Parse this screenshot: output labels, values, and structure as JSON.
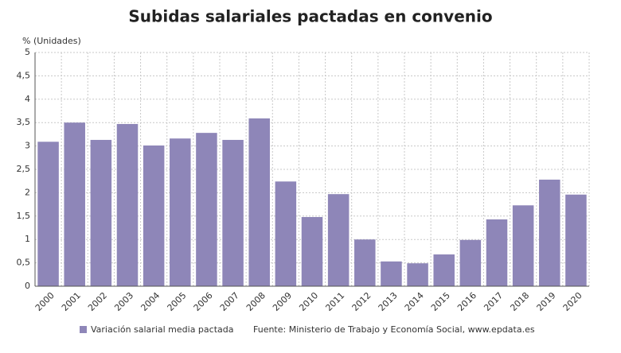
{
  "chart_data": {
    "type": "bar",
    "title": "Subidas salariales pactadas en convenio",
    "y_label": "% (Unidades)",
    "source": "Fuente: Ministerio de Trabajo y Economía Social, www.epdata.es",
    "categories": [
      "2000",
      "2001",
      "2002",
      "2003",
      "2004",
      "2005",
      "2006",
      "2007",
      "2008",
      "2009",
      "2010",
      "2011",
      "2012",
      "2013",
      "2014",
      "2015",
      "2016",
      "2017",
      "2018",
      "2019",
      "2020"
    ],
    "series": [
      {
        "name": "Variación salarial media pactada",
        "color": "#8e86b8",
        "values": [
          3.09,
          3.5,
          3.13,
          3.47,
          3.01,
          3.16,
          3.28,
          3.13,
          3.59,
          2.24,
          1.48,
          1.97,
          1.0,
          0.53,
          0.49,
          0.68,
          0.99,
          1.43,
          1.73,
          2.28,
          1.96
        ]
      }
    ],
    "ylim": [
      0,
      5
    ],
    "yticks": [
      0,
      {
        "value": 0.5,
        "label": "0,5"
      },
      1,
      {
        "value": 1.5,
        "label": "1,5"
      },
      2,
      {
        "value": 2.5,
        "label": "2,5"
      },
      3,
      {
        "value": 3.5,
        "label": "3,5"
      },
      4,
      {
        "value": 4.5,
        "label": "4,5"
      },
      5
    ],
    "grid": true
  }
}
